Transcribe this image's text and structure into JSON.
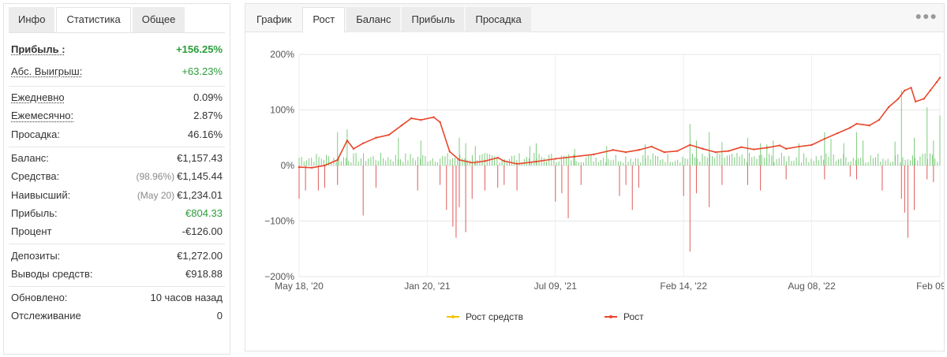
{
  "left": {
    "tabs": [
      "Инфо",
      "Статистика",
      "Общее"
    ],
    "active_tab": "Статистика",
    "groups": [
      [
        {
          "label": "Прибыль :",
          "value": "+156.25%",
          "green": true,
          "bold": true,
          "underline": true
        },
        {
          "label": "Абс. Выигрыш:",
          "value": "+63.23%",
          "green": true,
          "underline": true
        }
      ],
      [
        {
          "label": "Ежедневно",
          "value": "0.09%",
          "underline": true
        },
        {
          "label": "Ежемесячно:",
          "value": "2.87%",
          "underline": true
        },
        {
          "label": "Просадка:",
          "value": "46.16%"
        }
      ],
      [
        {
          "label": "Баланс:",
          "value": "€1,157.43"
        },
        {
          "label": "Средства:",
          "prefix": "(98.96%)",
          "value": "€1,145.44"
        },
        {
          "label": "Наивысший:",
          "prefix": "(May 20)",
          "value": "€1,234.01"
        },
        {
          "label": "Прибыль:",
          "value": "€804.33",
          "green": true
        },
        {
          "label": "Процент",
          "value": "-€126.00"
        }
      ],
      [
        {
          "label": "Депозиты:",
          "value": "€1,272.00"
        },
        {
          "label": "Выводы средств:",
          "value": "€918.88"
        }
      ],
      [
        {
          "label": "Обновлено:",
          "value": "10 часов назад"
        },
        {
          "label": "Отслеживание",
          "value": "0"
        }
      ]
    ]
  },
  "right": {
    "tabs": [
      "График",
      "Рост",
      "Баланс",
      "Прибыль",
      "Просадка"
    ],
    "active_tab": "Рост",
    "more_icon": "ellipsis-icon"
  },
  "chart_data": {
    "type": "line",
    "y_ticks": [
      "200%",
      "100%",
      "0%",
      "−100%",
      "−200%"
    ],
    "ylim": [
      -200,
      200
    ],
    "x_ticks": [
      "May 18, '20",
      "Jan 20, '21",
      "Jul 09, '21",
      "Feb 14, '22",
      "Aug 08, '22",
      "Feb 09, '23"
    ],
    "legend": [
      {
        "name": "Рост средств",
        "color": "#f5c400"
      },
      {
        "name": "Рост",
        "color": "#e8472b"
      }
    ],
    "series": [
      {
        "name": "Рост",
        "color": "#e8472b",
        "points": [
          [
            0,
            -3
          ],
          [
            0.02,
            -4
          ],
          [
            0.04,
            0
          ],
          [
            0.06,
            10
          ],
          [
            0.075,
            45
          ],
          [
            0.085,
            30
          ],
          [
            0.1,
            40
          ],
          [
            0.12,
            50
          ],
          [
            0.14,
            55
          ],
          [
            0.16,
            72
          ],
          [
            0.175,
            85
          ],
          [
            0.19,
            82
          ],
          [
            0.21,
            87
          ],
          [
            0.22,
            78
          ],
          [
            0.235,
            25
          ],
          [
            0.25,
            10
          ],
          [
            0.27,
            5
          ],
          [
            0.29,
            8
          ],
          [
            0.31,
            14
          ],
          [
            0.32,
            8
          ],
          [
            0.34,
            3
          ],
          [
            0.37,
            7
          ],
          [
            0.4,
            12
          ],
          [
            0.43,
            16
          ],
          [
            0.46,
            20
          ],
          [
            0.49,
            28
          ],
          [
            0.51,
            24
          ],
          [
            0.53,
            28
          ],
          [
            0.55,
            34
          ],
          [
            0.57,
            24
          ],
          [
            0.59,
            26
          ],
          [
            0.61,
            37
          ],
          [
            0.63,
            30
          ],
          [
            0.65,
            24
          ],
          [
            0.67,
            26
          ],
          [
            0.69,
            33
          ],
          [
            0.71,
            29
          ],
          [
            0.73,
            32
          ],
          [
            0.75,
            36
          ],
          [
            0.76,
            30
          ],
          [
            0.78,
            34
          ],
          [
            0.8,
            37
          ],
          [
            0.82,
            48
          ],
          [
            0.84,
            58
          ],
          [
            0.86,
            68
          ],
          [
            0.87,
            75
          ],
          [
            0.89,
            72
          ],
          [
            0.905,
            82
          ],
          [
            0.92,
            105
          ],
          [
            0.935,
            120
          ],
          [
            0.945,
            135
          ],
          [
            0.955,
            140
          ],
          [
            0.962,
            115
          ],
          [
            0.975,
            120
          ],
          [
            0.985,
            135
          ],
          [
            0.995,
            150
          ],
          [
            1.0,
            158
          ]
        ]
      }
    ],
    "bars_positive": [
      [
        0.06,
        60
      ],
      [
        0.075,
        65
      ],
      [
        0.155,
        50
      ],
      [
        0.19,
        45
      ],
      [
        0.25,
        50
      ],
      [
        0.26,
        40
      ],
      [
        0.275,
        35
      ],
      [
        0.36,
        35
      ],
      [
        0.37,
        40
      ],
      [
        0.43,
        30
      ],
      [
        0.48,
        35
      ],
      [
        0.54,
        38
      ],
      [
        0.61,
        75
      ],
      [
        0.62,
        45
      ],
      [
        0.64,
        60
      ],
      [
        0.66,
        42
      ],
      [
        0.7,
        50
      ],
      [
        0.72,
        40
      ],
      [
        0.73,
        38
      ],
      [
        0.74,
        45
      ],
      [
        0.78,
        40
      ],
      [
        0.82,
        60
      ],
      [
        0.83,
        48
      ],
      [
        0.85,
        40
      ],
      [
        0.87,
        60
      ],
      [
        0.88,
        45
      ],
      [
        0.93,
        43
      ],
      [
        0.94,
        135
      ],
      [
        0.96,
        50
      ],
      [
        0.98,
        105
      ],
      [
        0.99,
        45
      ],
      [
        1.0,
        90
      ]
    ],
    "bars_negative": [
      [
        0.0,
        60
      ],
      [
        0.01,
        45
      ],
      [
        0.03,
        45
      ],
      [
        0.04,
        40
      ],
      [
        0.06,
        35
      ],
      [
        0.1,
        90
      ],
      [
        0.12,
        40
      ],
      [
        0.185,
        45
      ],
      [
        0.22,
        35
      ],
      [
        0.23,
        80
      ],
      [
        0.24,
        110
      ],
      [
        0.245,
        130
      ],
      [
        0.25,
        75
      ],
      [
        0.26,
        120
      ],
      [
        0.27,
        60
      ],
      [
        0.29,
        45
      ],
      [
        0.31,
        40
      ],
      [
        0.32,
        35
      ],
      [
        0.34,
        45
      ],
      [
        0.4,
        65
      ],
      [
        0.41,
        50
      ],
      [
        0.42,
        95
      ],
      [
        0.44,
        35
      ],
      [
        0.5,
        55
      ],
      [
        0.51,
        35
      ],
      [
        0.52,
        80
      ],
      [
        0.53,
        40
      ],
      [
        0.6,
        55
      ],
      [
        0.61,
        155
      ],
      [
        0.62,
        50
      ],
      [
        0.64,
        75
      ],
      [
        0.66,
        35
      ],
      [
        0.7,
        35
      ],
      [
        0.72,
        45
      ],
      [
        0.76,
        25
      ],
      [
        0.82,
        25
      ],
      [
        0.86,
        20
      ],
      [
        0.87,
        25
      ],
      [
        0.91,
        45
      ],
      [
        0.94,
        60
      ],
      [
        0.945,
        85
      ],
      [
        0.95,
        130
      ],
      [
        0.96,
        80
      ],
      [
        0.98,
        25
      ],
      [
        0.99,
        30
      ]
    ]
  }
}
